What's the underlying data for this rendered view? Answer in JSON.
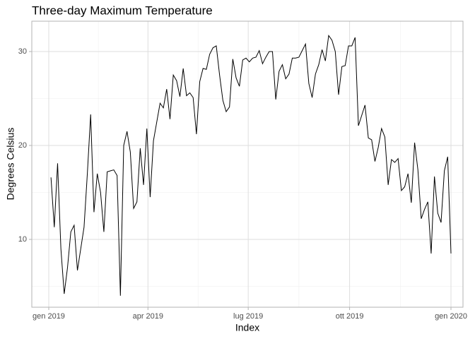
{
  "chart_data": {
    "type": "line",
    "title": "Three-day Maximum Temperature",
    "x_label": "Index",
    "y_label": "Degrees Celsius",
    "color": "#000000",
    "grid": true,
    "xlim": [
      -15.4,
      375.9
    ],
    "ylim": [
      2.78,
      33.23
    ],
    "xticks": [
      {
        "value": 0,
        "label": "gen 2019"
      },
      {
        "value": 90,
        "label": "apr 2019"
      },
      {
        "value": 181,
        "label": "lug 2019"
      },
      {
        "value": 273,
        "label": "ott 2019"
      },
      {
        "value": 365,
        "label": "gen 2020"
      }
    ],
    "yticks": [
      10,
      20,
      30
    ],
    "minor_xticks": [
      45,
      135.5,
      227,
      319
    ],
    "minor_yticks": [
      5,
      15,
      25
    ],
    "x": [
      2,
      5,
      8,
      11,
      14,
      17,
      20,
      23,
      26,
      29,
      32,
      35,
      38,
      41,
      44,
      47,
      50,
      53,
      56,
      59,
      62,
      65,
      68,
      71,
      74,
      77,
      80,
      83,
      86,
      89,
      92,
      95,
      98,
      101,
      104,
      107,
      110,
      113,
      116,
      119,
      122,
      125,
      128,
      131,
      134,
      137,
      140,
      143,
      146,
      149,
      152,
      155,
      158,
      161,
      164,
      167,
      170,
      173,
      176,
      179,
      182,
      185,
      188,
      191,
      194,
      197,
      200,
      203,
      206,
      209,
      212,
      215,
      218,
      221,
      224,
      227,
      230,
      233,
      236,
      239,
      242,
      245,
      248,
      251,
      254,
      257,
      260,
      263,
      266,
      269,
      272,
      275,
      278,
      281,
      284,
      287,
      290,
      293,
      296,
      299,
      302,
      305,
      308,
      311,
      314,
      317,
      320,
      323,
      326,
      329,
      332,
      335,
      338,
      341,
      344,
      347,
      350,
      353,
      356,
      359,
      362,
      365
    ],
    "values": [
      16.6,
      11.3,
      18.1,
      9,
      4.2,
      7,
      10.8,
      11.5,
      6.7,
      9,
      11.3,
      17,
      23.3,
      12.9,
      17,
      15,
      10.8,
      17.2,
      17.3,
      17.4,
      16.8,
      4,
      20,
      21.5,
      19.3,
      13.3,
      14,
      19.7,
      15.8,
      21.8,
      14.5,
      20.5,
      22.5,
      24.5,
      24,
      26,
      22.8,
      27.5,
      26.9,
      25.2,
      28.2,
      25.3,
      25.6,
      25.1,
      21.2,
      26.8,
      28.2,
      28.1,
      29.7,
      30.4,
      30.6,
      27.5,
      24.8,
      23.6,
      24.1,
      29.2,
      27.2,
      26.3,
      29.1,
      29.3,
      28.9,
      29.3,
      29.4,
      30.1,
      28.7,
      29.4,
      30,
      30,
      24.9,
      27.9,
      28.6,
      27.1,
      27.6,
      29.3,
      29.3,
      29.4,
      30.1,
      30.8,
      26.6,
      25.1,
      27.6,
      28.6,
      30.2,
      29,
      31.7,
      31.2,
      30,
      25.4,
      28.4,
      28.5,
      30.6,
      30.6,
      31.5,
      22.1,
      23.2,
      24.3,
      20.8,
      20.6,
      18.3,
      19.8,
      21.8,
      20.9,
      15.8,
      18.5,
      18.2,
      18.6,
      15.2,
      15.6,
      17,
      13.9,
      20.3,
      17.4,
      12.2,
      13.2,
      14,
      8.5,
      16.7,
      12.8,
      11.8,
      17.3,
      18.8,
      8.5
    ]
  }
}
